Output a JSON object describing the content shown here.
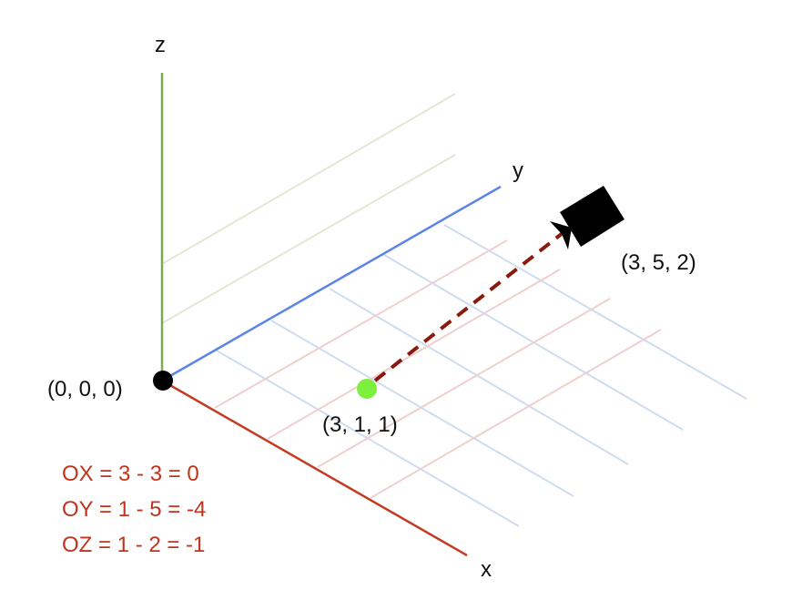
{
  "axes": {
    "x_label": "x",
    "y_label": "y",
    "z_label": "z"
  },
  "points": {
    "origin": "(0, 0, 0)",
    "target": "(3, 1, 1)",
    "camera": "(3, 5, 2)"
  },
  "equations": [
    "OX = 3 - 3 = 0",
    "OY = 1 - 5 = -4",
    "OZ = 1 - 2 = -1"
  ],
  "icons": {
    "camera": "video-camera-icon"
  },
  "colors": {
    "x_axis": "#c23b22",
    "y_axis": "#5b84e8",
    "z_axis": "#7aab50",
    "grid_x": "#cfdcf0",
    "grid_y": "#f0cfcf",
    "grid_z": "#dfe9d3",
    "vector": "#8b1a0e",
    "target_point": "#7cf03c",
    "origin_point": "#000000",
    "equation_text": "#c0341d"
  }
}
